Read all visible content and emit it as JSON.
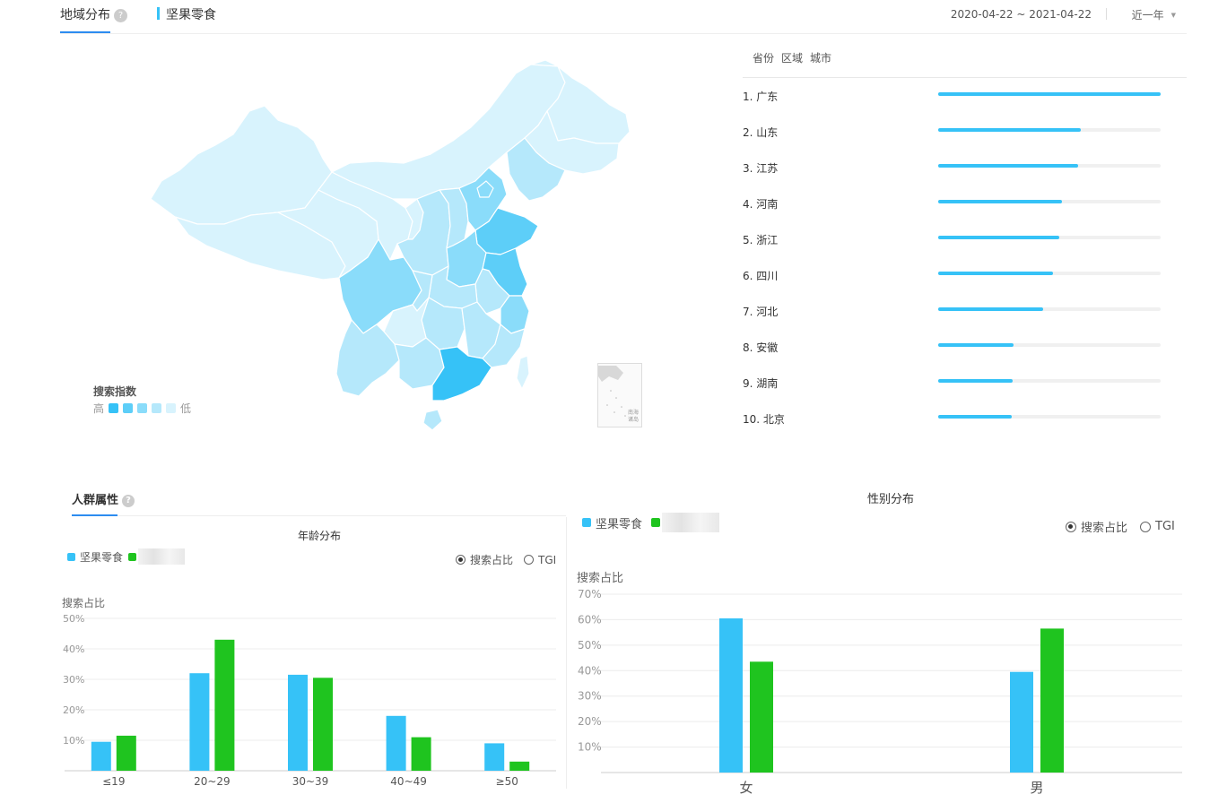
{
  "header": {
    "tab_region": "地域分布",
    "help_glyph": "?",
    "keyword": "坚果零食",
    "date_range": "2020-04-22 ~ 2021-04-22",
    "period": "近一年"
  },
  "map_legend": {
    "title": "搜索指数",
    "high": "高",
    "low": "低",
    "colors": [
      "#36c2f7",
      "#5dcef8",
      "#8adcfa",
      "#b5e8fb",
      "#d8f3fd"
    ]
  },
  "map_inset": {
    "label_1": "南海",
    "label_2": "诸岛"
  },
  "ranking": {
    "tabs": [
      "省份",
      "区域",
      "城市"
    ],
    "items": [
      {
        "label": "1.  广东",
        "value": 1.0
      },
      {
        "label": "2.  山东",
        "value": 0.64
      },
      {
        "label": "3.  江苏",
        "value": 0.63
      },
      {
        "label": "4.  河南",
        "value": 0.555
      },
      {
        "label": "5.  浙江",
        "value": 0.545
      },
      {
        "label": "6.  四川",
        "value": 0.515
      },
      {
        "label": "7.  河北",
        "value": 0.47
      },
      {
        "label": "8.  安徽",
        "value": 0.34
      },
      {
        "label": "9.  湖南",
        "value": 0.335
      },
      {
        "label": "10. 北京",
        "value": 0.33
      }
    ]
  },
  "crowd": {
    "title": "人群属性"
  },
  "age_chart": {
    "legend_label": "坚果零食",
    "radio_share": "搜索占比",
    "radio_tgi": "TGI",
    "y_title": "搜索占比"
  },
  "gender_chart": {
    "legend_label": "坚果零食",
    "radio_share": "搜索占比",
    "radio_tgi": "TGI",
    "y_title": "搜索占比"
  },
  "chart_data": [
    {
      "type": "bar",
      "title": "年龄分布",
      "categories": [
        "≤19",
        "20~29",
        "30~39",
        "40~49",
        "≥50"
      ],
      "series": [
        {
          "name": "坚果零食",
          "color": "#36c2f7",
          "values": [
            9.5,
            32,
            31.5,
            18,
            9
          ]
        },
        {
          "color": "#1fc41f",
          "values": [
            11.5,
            43,
            30.5,
            11,
            3
          ]
        }
      ],
      "ylabel": "搜索占比",
      "ylim": [
        0,
        50
      ],
      "yticks": [
        "10%",
        "20%",
        "30%",
        "40%",
        "50%"
      ],
      "grid": true
    },
    {
      "type": "bar",
      "title": "性别分布",
      "categories": [
        "女",
        "男"
      ],
      "series": [
        {
          "name": "坚果零食",
          "color": "#36c2f7",
          "values": [
            60.5,
            39.5
          ]
        },
        {
          "color": "#1fc41f",
          "values": [
            43.5,
            56.5
          ]
        }
      ],
      "ylabel": "搜索占比",
      "ylim": [
        0,
        70
      ],
      "yticks": [
        "10%",
        "20%",
        "30%",
        "40%",
        "50%",
        "60%",
        "70%"
      ],
      "grid": true
    }
  ]
}
